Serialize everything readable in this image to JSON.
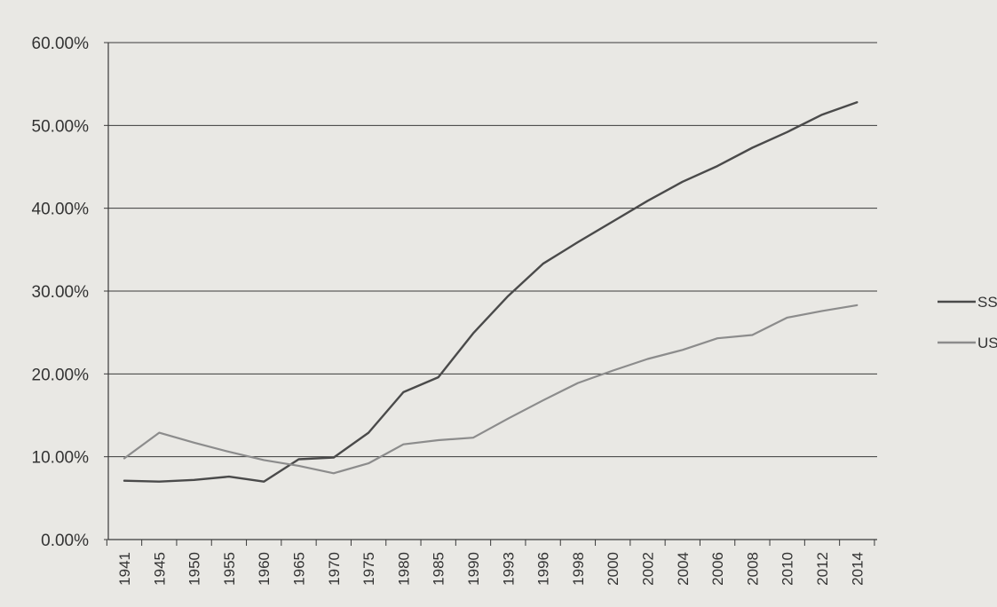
{
  "chart_data": {
    "type": "line",
    "title": "",
    "xlabel": "",
    "ylabel": "",
    "categories": [
      "1941",
      "1945",
      "1950",
      "1955",
      "1960",
      "1965",
      "1970",
      "1975",
      "1980",
      "1985",
      "1990",
      "1993",
      "1996",
      "1998",
      "2000",
      "2002",
      "2004",
      "2006",
      "2008",
      "2010",
      "2012",
      "2014"
    ],
    "yticks": [
      "0.00%",
      "10.00%",
      "20.00%",
      "30.00%",
      "40.00%",
      "50.00%",
      "60.00%"
    ],
    "ylim": [
      0,
      60
    ],
    "grid": true,
    "legend_position": "right",
    "series": [
      {
        "name": "SSP",
        "color": "#4a4a4a",
        "values": [
          7.1,
          7.0,
          7.2,
          7.6,
          7.0,
          9.7,
          9.9,
          12.9,
          17.8,
          19.6,
          24.9,
          29.4,
          33.3,
          35.9,
          38.4,
          40.9,
          43.2,
          45.1,
          47.3,
          49.2,
          51.3,
          52.8
        ]
      },
      {
        "name": "USS",
        "color": "#8c8c8c",
        "values": [
          9.8,
          12.9,
          11.7,
          10.6,
          9.6,
          8.9,
          8.0,
          9.2,
          11.5,
          12.0,
          12.3,
          14.6,
          16.8,
          18.9,
          20.4,
          21.8,
          22.9,
          24.3,
          24.7,
          26.8,
          27.6,
          28.3
        ]
      }
    ]
  }
}
